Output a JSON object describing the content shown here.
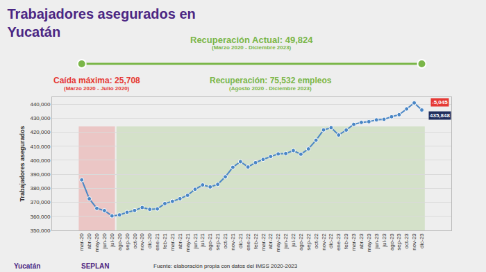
{
  "chart_data": {
    "type": "line",
    "title": [
      "Trabajadores asegurados en",
      "Yucatán"
    ],
    "y_label": "Trabajadores asegurados",
    "categories": [
      "mar-20",
      "abr-20",
      "may-20",
      "jun-20",
      "jul-20",
      "ago-20",
      "sep-20",
      "oct-20",
      "nov-20",
      "dic-20",
      "ene-21",
      "feb-21",
      "mar-21",
      "abr-21",
      "may-21",
      "jun-21",
      "jul-21",
      "ago-21",
      "sep-21",
      "oct-21",
      "nov-21",
      "dic-21",
      "ene-22",
      "feb-22",
      "mar-22",
      "abr-22",
      "may-22",
      "jun-22",
      "jul-22",
      "ago-22",
      "sep-22",
      "oct-22",
      "nov-22",
      "dic-22",
      "ene-23",
      "feb-23",
      "mar-23",
      "abr-23",
      "may-23",
      "jun-23",
      "jul-23",
      "ago-23",
      "sep-23",
      "oct-23",
      "nov-23",
      "dic-23"
    ],
    "values": [
      386024,
      372530,
      365700,
      364100,
      360316,
      361050,
      362900,
      364200,
      366300,
      365000,
      365300,
      369100,
      370700,
      372600,
      375000,
      379300,
      382400,
      381000,
      382800,
      388200,
      395000,
      399000,
      395200,
      398300,
      400600,
      402700,
      404500,
      404800,
      406900,
      404300,
      408100,
      414300,
      421600,
      423200,
      418000,
      421500,
      425600,
      427000,
      427500,
      428800,
      429200,
      431000,
      432500,
      436600,
      440893,
      435848
    ],
    "color": "#4a86c5",
    "marker": "circle",
    "ylim": [
      350000,
      445000
    ],
    "yticks": [
      {
        "value": 350000,
        "label": "350,000"
      },
      {
        "value": 360000,
        "label": "360,000"
      },
      {
        "value": 370000,
        "label": "370,000"
      },
      {
        "value": 380000,
        "label": "380,000"
      },
      {
        "value": 390000,
        "label": "390,000"
      },
      {
        "value": 400000,
        "label": "400,000"
      },
      {
        "value": 410000,
        "label": "410,000"
      },
      {
        "value": 420000,
        "label": "420,000"
      },
      {
        "value": 430000,
        "label": "430,000"
      },
      {
        "value": 440000,
        "label": "440,000"
      }
    ],
    "grid": true,
    "timeline": {
      "text": "Recuperación Actual: 49,824",
      "subtitle": "(Marzo 2020 - Diciembre 2023)",
      "color": "#7ab648",
      "from": "mar-20",
      "to": "dic-23"
    },
    "bands": [
      {
        "text": "Caída máxima: 25,708",
        "subtitle": "(Marzo 2020 - Julio 2020)",
        "color": "#e53935",
        "from": "mar-20",
        "to": "jul-20"
      },
      {
        "text": "Recuperación: 75,532 empleos",
        "subtitle": "(Agosto 2020 - Diciembre 2023)",
        "color": "#7ab648",
        "from": "ago-20",
        "to": "dic-23"
      }
    ],
    "annotations": [
      {
        "text": "-5,045",
        "at": "dic-23",
        "color": "#e53935"
      },
      {
        "text": "435,848",
        "at": "dic-23",
        "color": "#1f2d5c"
      }
    ],
    "source": "Fuente: elaboración propia con datos del IMSS 2020-2023",
    "logos": [
      "Yucatán",
      "SEPLAN"
    ]
  }
}
